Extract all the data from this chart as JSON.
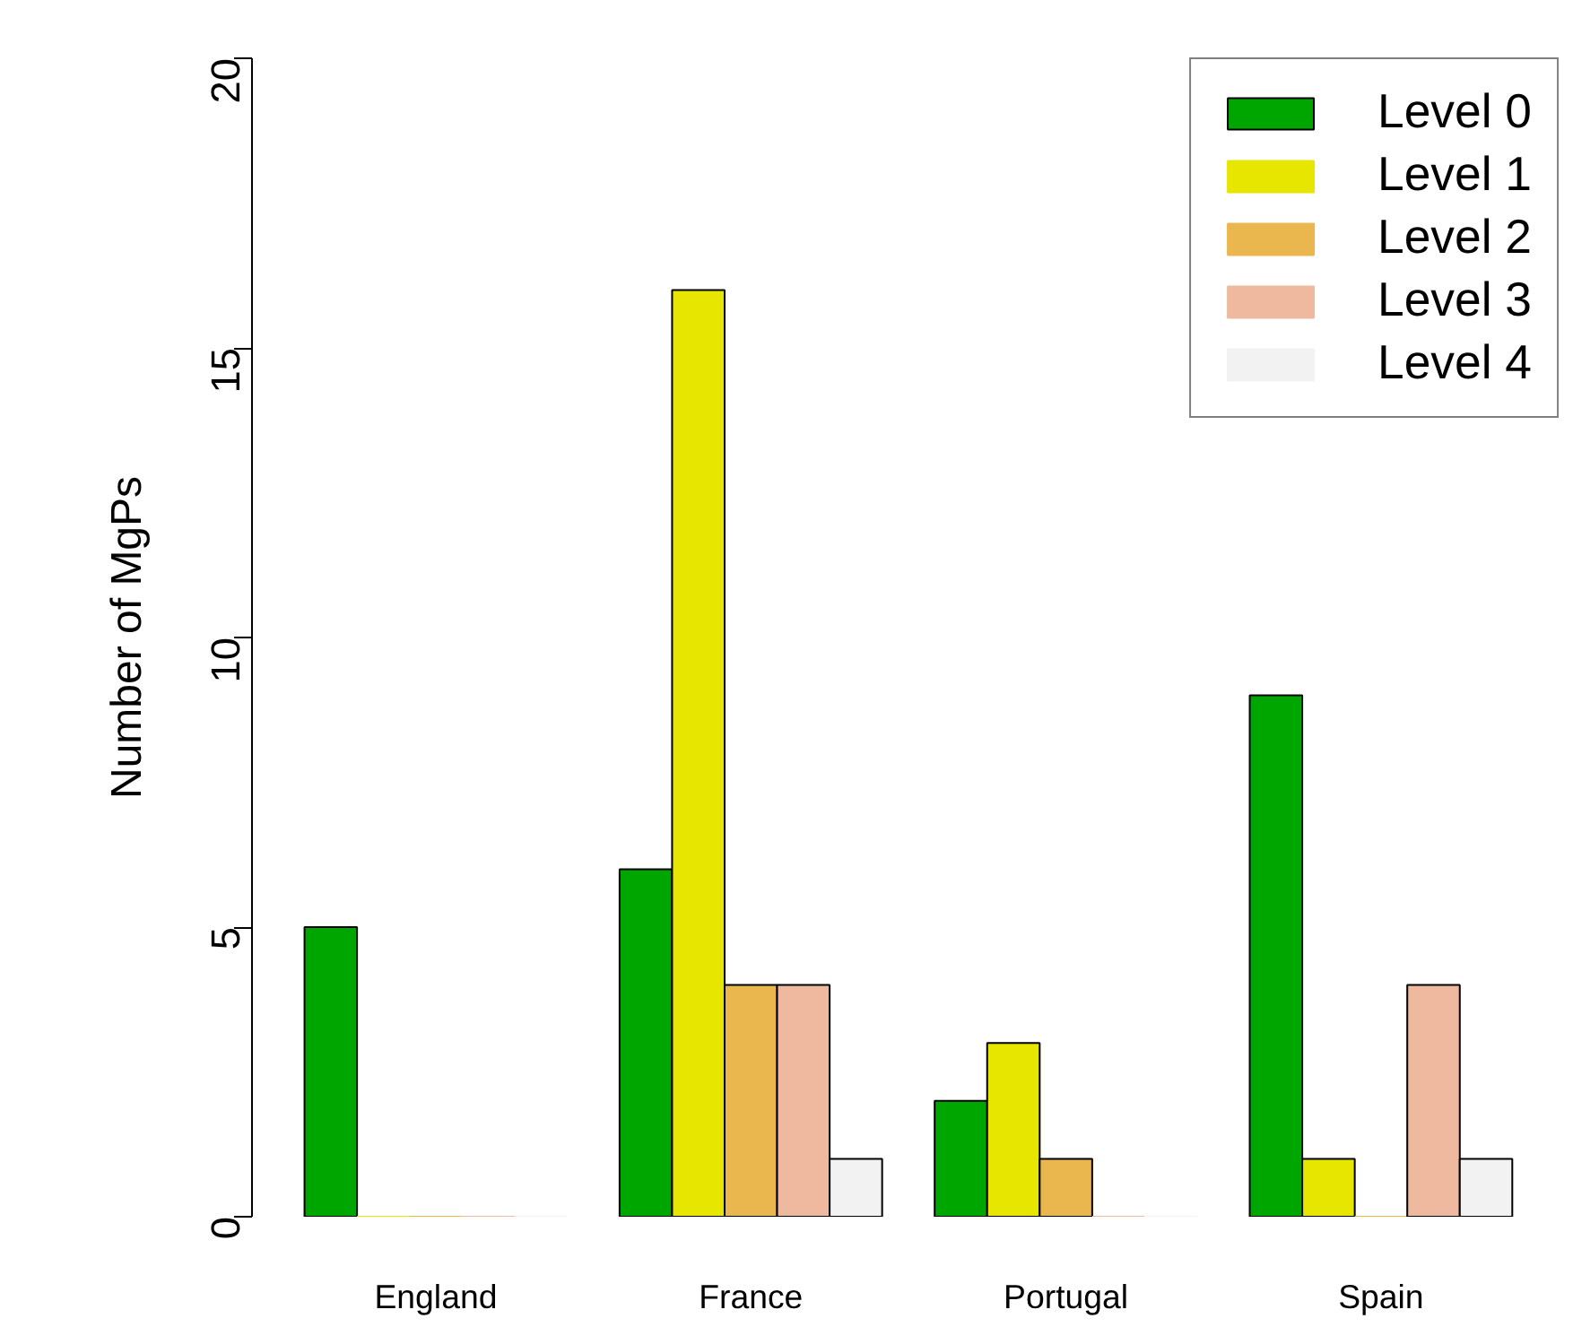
{
  "chart_data": {
    "type": "bar",
    "ylabel": "Number of MgPs",
    "categories": [
      "England",
      "France",
      "Portugal",
      "Spain"
    ],
    "series": [
      {
        "name": "Level 0",
        "color": "#00a600",
        "values": [
          5,
          6,
          2,
          9
        ]
      },
      {
        "name": "Level 1",
        "color": "#e6e600",
        "values": [
          0,
          16,
          3,
          1
        ]
      },
      {
        "name": "Level 2",
        "color": "#eab64e",
        "values": [
          0,
          4,
          1,
          0
        ]
      },
      {
        "name": "Level 3",
        "color": "#eeb99f",
        "values": [
          0,
          4,
          0,
          4
        ]
      },
      {
        "name": "Level 4",
        "color": "#f2f2f2",
        "values": [
          0,
          1,
          0,
          1
        ]
      }
    ],
    "ylim": [
      0,
      20
    ],
    "yticks": [
      0,
      5,
      10,
      15,
      20
    ],
    "grid": false,
    "legend": "top right"
  }
}
